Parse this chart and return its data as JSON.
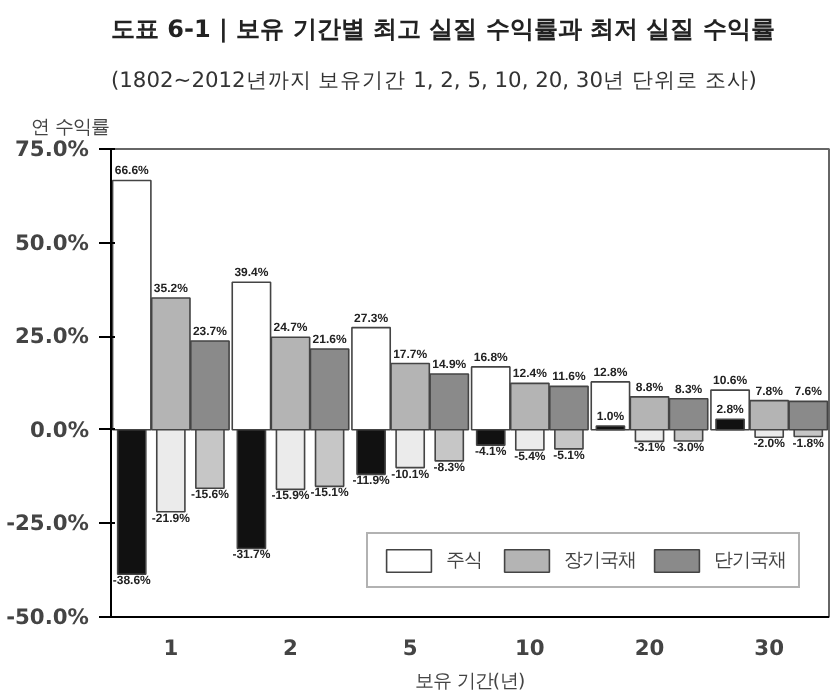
{
  "chart_data": {
    "type": "bar",
    "title": "도표 6-1 | 보유 기간별 최고 실질 수익률과 최저 실질 수익률",
    "subtitle": "(1802~2012년까지 보유기간 1, 2, 5, 10, 20, 30년 단위로 조사)",
    "ylabel": "연 수익률",
    "xlabel": "보유 기간(년)",
    "categories": [
      "1",
      "2",
      "5",
      "10",
      "20",
      "30"
    ],
    "series": [
      {
        "name": "주식",
        "color": "#ffffff",
        "values": [
          66.6,
          39.4,
          27.3,
          16.8,
          12.8,
          10.6
        ],
        "value_labels": [
          "66.6%",
          "39.4%",
          "27.3%",
          "16.8%",
          "12.8%",
          "10.6%"
        ]
      },
      {
        "color": "#111111",
        "values": [
          -38.6,
          -31.7,
          -11.9,
          -4.1,
          1.0,
          2.8
        ],
        "value_labels": [
          "-38.6%",
          "-31.7%",
          "-11.9%",
          "-4.1%",
          "1.0%",
          "2.8%"
        ]
      },
      {
        "name": "장기국채",
        "color": "#b4b4b4",
        "values": [
          35.2,
          24.7,
          17.7,
          12.4,
          8.8,
          7.8
        ],
        "value_labels": [
          "35.2%",
          "24.7%",
          "17.7%",
          "12.4%",
          "8.8%",
          "7.8%"
        ]
      },
      {
        "color": "#ebebeb",
        "values": [
          -21.9,
          -15.9,
          -10.1,
          -5.4,
          -3.1,
          -2.0
        ],
        "value_labels": [
          "-21.9%",
          "-15.9%",
          "-10.1%",
          "-5.4%",
          "-3.1%",
          "-2.0%"
        ]
      },
      {
        "name": "단기국채",
        "color": "#8a8a8a",
        "values": [
          23.7,
          21.6,
          14.9,
          11.6,
          8.3,
          7.6
        ],
        "value_labels": [
          "23.7%",
          "21.6%",
          "14.9%",
          "11.6%",
          "8.3%",
          "7.6%"
        ]
      },
      {
        "color": "#c6c6c6",
        "values": [
          -15.6,
          -15.1,
          -8.3,
          -5.1,
          -3.0,
          -1.8
        ],
        "value_labels": [
          "-15.6%",
          "-15.1%",
          "-8.3%",
          "-5.1%",
          "-3.0%",
          "-1.8%"
        ]
      }
    ],
    "ylim": [
      -50,
      75
    ],
    "yticks": [
      {
        "value": -50,
        "label": "-50.0%"
      },
      {
        "value": -25,
        "label": "-25.0%"
      },
      {
        "value": 0,
        "label": "0.0%"
      },
      {
        "value": 25,
        "label": "25.0%"
      },
      {
        "value": 50,
        "label": "50.0%"
      },
      {
        "value": 75,
        "label": "75.0%"
      }
    ],
    "grid": false,
    "legend": "bottom right"
  }
}
